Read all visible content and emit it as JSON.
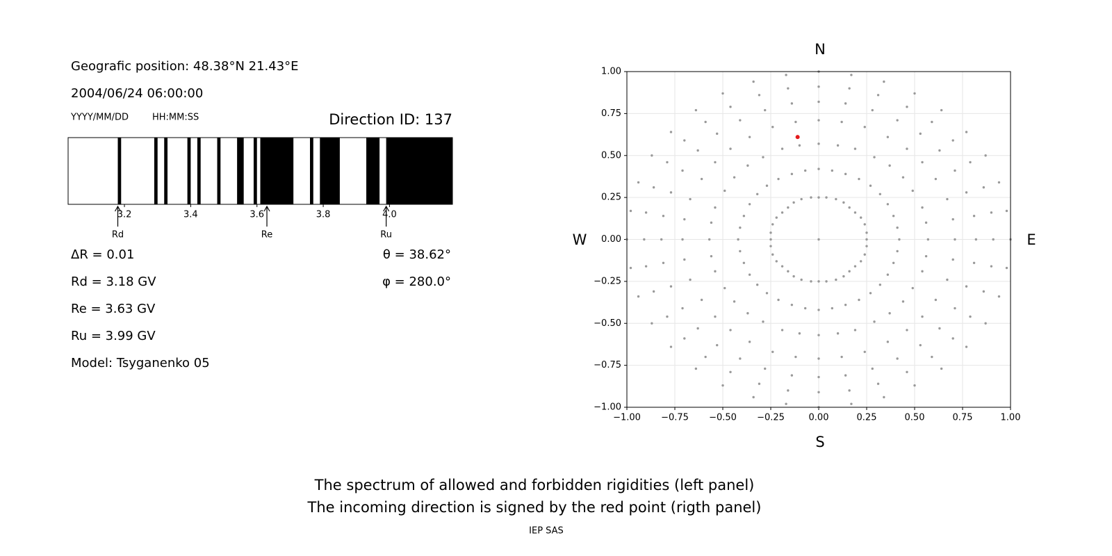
{
  "header": {
    "position": "Geografic position: 48.38°N 21.43°E",
    "datetime": "2004/06/24 06:00:00",
    "date_format": "YYYY/MM/DD",
    "time_format": "HH:MM:SS",
    "direction": "Direction ID: 137"
  },
  "info": [
    "ΔR = 0.01",
    "Rd = 3.18 GV",
    "Re = 3.63 GV",
    "Ru = 3.99 GV",
    "Model: Tsyganenko 05"
  ],
  "angles": [
    "θ = 38.62°",
    "φ = 280.0°"
  ],
  "chart_data": [
    {
      "type": "spectrum",
      "xlim": [
        3.03,
        4.19
      ],
      "xticks": [
        3.2,
        3.4,
        3.6,
        3.8,
        {
          "value": 4,
          "label": "4.0"
        }
      ],
      "color": "#000000",
      "bands": [
        [
          3.18,
          3.19
        ],
        [
          3.29,
          3.3
        ],
        [
          3.32,
          3.33
        ],
        [
          3.39,
          3.4
        ],
        [
          3.42,
          3.43
        ],
        [
          3.48,
          3.49
        ],
        [
          3.54,
          3.56
        ],
        [
          3.59,
          3.6
        ],
        [
          3.61,
          3.71
        ],
        [
          3.76,
          3.77
        ],
        [
          3.79,
          3.85
        ],
        [
          3.93,
          3.97
        ],
        [
          3.99,
          4.19
        ]
      ],
      "markers": [
        {
          "label": "Rd",
          "value": 3.18
        },
        {
          "label": "Re",
          "value": 3.63
        },
        {
          "label": "Ru",
          "value": 3.99
        }
      ]
    },
    {
      "type": "scatter",
      "color": "#999999",
      "grid": true,
      "xlim": [
        -1,
        1
      ],
      "ylim": [
        -1,
        1
      ],
      "xticks": [
        {
          "value": -1,
          "label": "−1.00"
        },
        {
          "value": -0.75,
          "label": "−0.75"
        },
        {
          "value": -0.5,
          "label": "−0.50"
        },
        {
          "value": -0.25,
          "label": "−0.25"
        },
        {
          "value": 0,
          "label": "0.00"
        },
        {
          "value": 0.25,
          "label": "0.25"
        },
        {
          "value": 0.5,
          "label": "0.50"
        },
        {
          "value": 0.75,
          "label": "0.75"
        },
        {
          "value": 1,
          "label": "1.00"
        }
      ],
      "yticks": [
        {
          "value": -1,
          "label": "−1.00"
        },
        {
          "value": -0.75,
          "label": "−0.75"
        },
        {
          "value": -0.5,
          "label": "−0.50"
        },
        {
          "value": -0.25,
          "label": "−0.25"
        },
        {
          "value": 0,
          "label": "0.00"
        },
        {
          "value": 0.25,
          "label": "0.25"
        },
        {
          "value": 0.5,
          "label": "0.50"
        },
        {
          "value": 0.75,
          "label": "0.75"
        },
        {
          "value": 1,
          "label": "1.00"
        }
      ],
      "annotations": {
        "north": "N",
        "south": "S",
        "west": "W",
        "east": "E"
      },
      "highlight": {
        "x": -0.11,
        "y": 0.61,
        "color": "#e41a1c"
      },
      "x": [
        0,
        0,
        0.04,
        0.09,
        0.13,
        0.16,
        0.19,
        0.22,
        0.24,
        0.25,
        0.25,
        0.25,
        0.24,
        0.22,
        0.19,
        0.16,
        0.13,
        0.09,
        0.04,
        0,
        -0.04,
        -0.09,
        -0.13,
        -0.16,
        -0.19,
        -0.22,
        -0.24,
        -0.25,
        -0.25,
        -0.25,
        -0.24,
        -0.22,
        -0.19,
        -0.16,
        -0.13,
        -0.09,
        -0.04,
        0,
        0.07,
        0.14,
        0.21,
        0.27,
        0.32,
        0.36,
        0.39,
        0.41,
        0.42,
        0.41,
        0.39,
        0.36,
        0.32,
        0.27,
        0.21,
        0.14,
        0.07,
        0,
        -0.07,
        -0.14,
        -0.21,
        -0.27,
        -0.32,
        -0.36,
        -0.39,
        -0.41,
        -0.42,
        -0.41,
        -0.39,
        -0.36,
        -0.32,
        -0.27,
        -0.21,
        -0.14,
        -0.07,
        0,
        0.1,
        0.19,
        0.29,
        0.37,
        0.44,
        0.49,
        0.54,
        0.56,
        0.57,
        0.56,
        0.54,
        0.49,
        0.44,
        0.37,
        0.29,
        0.19,
        0.1,
        0,
        -0.1,
        -0.19,
        -0.29,
        -0.37,
        -0.44,
        -0.49,
        -0.54,
        -0.56,
        -0.57,
        -0.56,
        -0.54,
        -0.49,
        -0.44,
        -0.37,
        -0.29,
        -0.19,
        -0.1,
        0,
        0.12,
        0.24,
        0.36,
        0.46,
        0.54,
        0.61,
        0.67,
        0.7,
        0.71,
        0.7,
        0.67,
        0.61,
        0.54,
        0.46,
        0.36,
        0.24,
        0.12,
        0,
        -0.12,
        -0.24,
        -0.36,
        -0.46,
        -0.54,
        -0.61,
        -0.67,
        -0.7,
        -0.71,
        -0.7,
        -0.67,
        -0.61,
        -0.54,
        -0.46,
        -0.36,
        -0.24,
        -0.12,
        0,
        0.14,
        0.28,
        0.41,
        0.53,
        0.63,
        0.71,
        0.77,
        0.81,
        0.82,
        0.81,
        0.77,
        0.71,
        0.63,
        0.53,
        0.41,
        0.28,
        0.14,
        0,
        -0.14,
        -0.28,
        -0.41,
        -0.53,
        -0.63,
        -0.71,
        -0.77,
        -0.81,
        -0.82,
        -0.81,
        -0.77,
        -0.71,
        -0.63,
        -0.53,
        -0.41,
        -0.28,
        -0.14,
        0,
        0.16,
        0.31,
        0.46,
        0.59,
        0.7,
        0.79,
        0.86,
        0.9,
        0.91,
        0.9,
        0.86,
        0.79,
        0.7,
        0.59,
        0.46,
        0.31,
        0.16,
        0,
        -0.16,
        -0.31,
        -0.46,
        -0.59,
        -0.7,
        -0.79,
        -0.86,
        -0.9,
        -0.91,
        -0.9,
        -0.86,
        -0.79,
        -0.7,
        -0.59,
        -0.46,
        -0.31,
        -0.16,
        0,
        0.17,
        0.34,
        0.5,
        0.64,
        0.77,
        0.87,
        0.94,
        0.98,
        1,
        0.98,
        0.94,
        0.87,
        0.77,
        0.64,
        0.5,
        0.34,
        0.17,
        0,
        -0.17,
        -0.34,
        -0.5,
        -0.64,
        -0.77,
        -0.87,
        -0.94,
        -0.98,
        -1,
        -0.98,
        -0.94,
        -0.87,
        -0.77,
        -0.64,
        -0.5,
        -0.34,
        -0.17
      ],
      "y": [
        0,
        0.25,
        0.25,
        0.24,
        0.22,
        0.19,
        0.16,
        0.13,
        0.09,
        0.04,
        0,
        -0.04,
        -0.09,
        -0.13,
        -0.16,
        -0.19,
        -0.22,
        -0.24,
        -0.25,
        -0.25,
        -0.25,
        -0.24,
        -0.22,
        -0.19,
        -0.16,
        -0.13,
        -0.09,
        -0.04,
        0,
        0.04,
        0.09,
        0.13,
        0.16,
        0.19,
        0.22,
        0.24,
        0.25,
        0.42,
        0.41,
        0.39,
        0.36,
        0.32,
        0.27,
        0.21,
        0.14,
        0.07,
        0,
        -0.07,
        -0.14,
        -0.21,
        -0.27,
        -0.32,
        -0.36,
        -0.39,
        -0.41,
        -0.42,
        -0.41,
        -0.39,
        -0.36,
        -0.32,
        -0.27,
        -0.21,
        -0.14,
        -0.07,
        0,
        0.07,
        0.14,
        0.21,
        0.27,
        0.32,
        0.36,
        0.39,
        0.41,
        0.57,
        0.56,
        0.54,
        0.49,
        0.44,
        0.37,
        0.29,
        0.19,
        0.1,
        0,
        -0.1,
        -0.19,
        -0.29,
        -0.37,
        -0.44,
        -0.49,
        -0.54,
        -0.56,
        -0.57,
        -0.56,
        -0.54,
        -0.49,
        -0.44,
        -0.37,
        -0.29,
        -0.19,
        -0.1,
        0,
        0.1,
        0.19,
        0.29,
        0.37,
        0.44,
        0.49,
        0.54,
        0.56,
        0.71,
        0.7,
        0.67,
        0.61,
        0.54,
        0.46,
        0.36,
        0.24,
        0.12,
        0,
        -0.12,
        -0.24,
        -0.36,
        -0.46,
        -0.54,
        -0.61,
        -0.67,
        -0.7,
        -0.71,
        -0.7,
        -0.67,
        -0.61,
        -0.54,
        -0.46,
        -0.36,
        -0.24,
        -0.12,
        0,
        0.12,
        0.24,
        0.36,
        0.46,
        0.54,
        0.61,
        0.67,
        0.7,
        0.82,
        0.81,
        0.77,
        0.71,
        0.63,
        0.53,
        0.41,
        0.28,
        0.14,
        0,
        -0.14,
        -0.28,
        -0.41,
        -0.53,
        -0.63,
        -0.71,
        -0.77,
        -0.81,
        -0.82,
        -0.81,
        -0.77,
        -0.71,
        -0.63,
        -0.53,
        -0.41,
        -0.28,
        -0.14,
        0,
        0.14,
        0.28,
        0.41,
        0.53,
        0.63,
        0.71,
        0.77,
        0.81,
        0.91,
        0.9,
        0.86,
        0.79,
        0.7,
        0.59,
        0.46,
        0.31,
        0.16,
        0,
        -0.16,
        -0.31,
        -0.46,
        -0.59,
        -0.7,
        -0.79,
        -0.86,
        -0.9,
        -0.91,
        -0.9,
        -0.86,
        -0.79,
        -0.7,
        -0.59,
        -0.46,
        -0.31,
        -0.16,
        0,
        0.16,
        0.31,
        0.46,
        0.59,
        0.7,
        0.79,
        0.86,
        0.9,
        1,
        0.98,
        0.94,
        0.87,
        0.77,
        0.64,
        0.5,
        0.34,
        0.17,
        0,
        -0.17,
        -0.34,
        -0.5,
        -0.64,
        -0.77,
        -0.87,
        -0.94,
        -0.98,
        -1,
        -0.98,
        -0.94,
        -0.87,
        -0.77,
        -0.64,
        -0.5,
        -0.34,
        -0.17,
        0,
        0.17,
        0.34,
        0.5,
        0.64,
        0.77,
        0.87,
        0.94,
        0.98
      ]
    }
  ],
  "caption": [
    "The spectrum of allowed and forbidden rigidities (left panel)",
    "The incoming direction is signed by the red point (rigth panel)"
  ],
  "credit": "IEP SAS"
}
